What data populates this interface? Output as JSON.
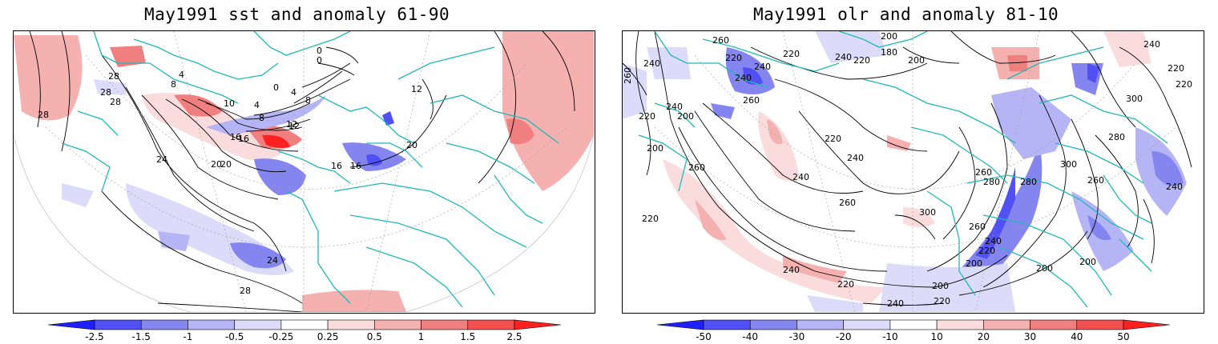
{
  "panels": [
    {
      "title": "May1991 sst and anomaly 61-90",
      "colorbar": {
        "ticks": [
          "-2.5",
          "-1.5",
          "-1",
          "-0.5",
          "-0.25",
          "0.25",
          "0.5",
          "1",
          "1.5",
          "2.5"
        ],
        "colors": [
          "#2020ff",
          "#5050f5",
          "#8585f0",
          "#b5b5f5",
          "#dcdcfa",
          "#ffffff",
          "#fadcdc",
          "#f5b0b0",
          "#f08080",
          "#f25050",
          "#ff2020"
        ]
      },
      "contour_labels": [
        "28",
        "28",
        "28",
        "24",
        "20",
        "16",
        "16",
        "12",
        "8",
        "4",
        "0",
        "0",
        "4",
        "8",
        "10",
        "12",
        "16",
        "20",
        "24",
        "28",
        "28",
        "8",
        "4",
        "0",
        "12",
        "16",
        "20"
      ]
    },
    {
      "title": "May1991 olr and anomaly 81-10",
      "colorbar": {
        "ticks": [
          "-50",
          "-40",
          "-30",
          "-20",
          "-10",
          "10",
          "20",
          "30",
          "40",
          "50"
        ],
        "colors": [
          "#2020ff",
          "#5050f5",
          "#8585f0",
          "#b5b5f5",
          "#dcdcfa",
          "#ffffff",
          "#fadcdc",
          "#f5b0b0",
          "#f08080",
          "#f25050",
          "#ff2020"
        ]
      },
      "contour_labels": [
        "260",
        "240",
        "220",
        "200",
        "240",
        "220",
        "240",
        "260",
        "240",
        "200",
        "180",
        "200",
        "220",
        "260",
        "220",
        "240",
        "200",
        "260",
        "280",
        "300",
        "220",
        "240",
        "260",
        "280",
        "300",
        "220",
        "240",
        "260",
        "200",
        "240",
        "220",
        "200",
        "260",
        "240",
        "220",
        "200",
        "200",
        "240",
        "220",
        "240",
        "220",
        "300",
        "280",
        "260",
        "240",
        "220"
      ]
    }
  ],
  "colors": {
    "coastline": "#20b8b8",
    "negative_strong": "#2020ff",
    "positive_strong": "#ff2020",
    "contour": "#000000"
  }
}
